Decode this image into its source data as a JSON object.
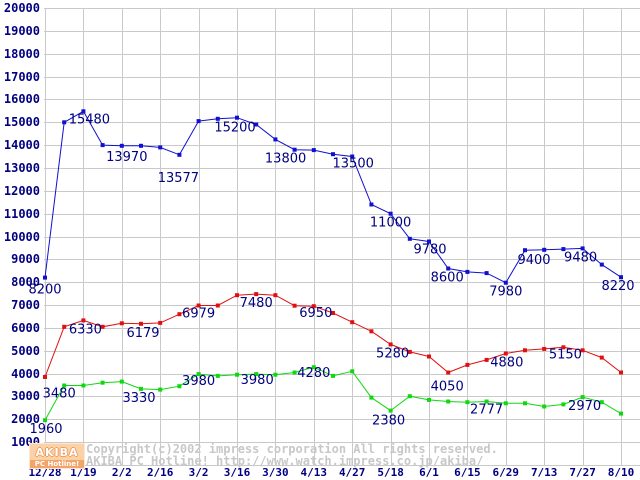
{
  "watermark": {
    "copyright_line1": "Copyright(c)2002 impress corporation All rights reserved.",
    "copyright_line2": "AKIBA PC Hotline!  http://www.watch.impress.co.jp/akiba/"
  },
  "logo": {
    "title": "AKIBA",
    "subtitle": "PC Hotline!"
  },
  "colors": {
    "grid": "#c9c9c9",
    "axis_text": "#000080",
    "point_label_text": "#000080",
    "watermark_text": "#c8c8c8",
    "logo_background": "#fbd2a8",
    "logo_strip_background": "#f3a469",
    "series_blue": "#1010d0",
    "series_red": "#e01010",
    "series_green": "#10d810"
  },
  "chart_data": {
    "type": "line",
    "title": "",
    "xlabel": "",
    "ylabel": "",
    "grid": true,
    "legend": "none",
    "ylim": [
      0,
      20000
    ],
    "y_tick_step": 1000,
    "x_tick_labels": [
      "12/28",
      "1/19",
      "2/2",
      "2/16",
      "3/2",
      "3/16",
      "3/30",
      "4/13",
      "4/27",
      "5/18",
      "6/1",
      "6/15",
      "6/29",
      "7/13",
      "7/27",
      "8/10"
    ],
    "points_per_tick_interval": 2,
    "n_points": 31,
    "series": [
      {
        "name": "blue-price-line",
        "color": "#1010d0",
        "marker_size": 4,
        "values": [
          8200,
          15000,
          15480,
          14000,
          13970,
          13970,
          13900,
          13577,
          15050,
          15150,
          15200,
          14900,
          14250,
          13800,
          13780,
          13600,
          13500,
          11400,
          11000,
          9900,
          9780,
          8600,
          8450,
          8400,
          7980,
          9400,
          9420,
          9450,
          9480,
          8770,
          8220
        ],
        "point_labels": [
          {
            "i": 0,
            "text": "8200",
            "dx": 0,
            "dy": 16
          },
          {
            "i": 2,
            "text": "15480",
            "dx": 6,
            "dy": 12
          },
          {
            "i": 4,
            "text": "13970",
            "dx": 5,
            "dy": 15
          },
          {
            "i": 7,
            "text": "13577",
            "dx": -1,
            "dy": 27
          },
          {
            "i": 10,
            "text": "15200",
            "dx": -2,
            "dy": 14
          },
          {
            "i": 13,
            "text": "13800",
            "dx": -9,
            "dy": 13
          },
          {
            "i": 16,
            "text": "13500",
            "dx": 1,
            "dy": 11
          },
          {
            "i": 18,
            "text": "11000",
            "dx": 0,
            "dy": 13
          },
          {
            "i": 20,
            "text": "9780",
            "dx": 1,
            "dy": 12
          },
          {
            "i": 21,
            "text": "8600",
            "dx": -1,
            "dy": 13
          },
          {
            "i": 24,
            "text": "7980",
            "dx": 0,
            "dy": 13
          },
          {
            "i": 25,
            "text": "9400",
            "dx": 9,
            "dy": 14
          },
          {
            "i": 28,
            "text": "9480",
            "dx": -2,
            "dy": 13
          },
          {
            "i": 30,
            "text": "8220",
            "dx": -3,
            "dy": 13
          }
        ]
      },
      {
        "name": "red-price-line",
        "color": "#e01010",
        "marker_size": 4,
        "values": [
          3850,
          6050,
          6330,
          6050,
          6200,
          6179,
          6220,
          6600,
          6979,
          6980,
          7430,
          7480,
          7430,
          6970,
          6950,
          6650,
          6250,
          5850,
          5280,
          4950,
          4750,
          4050,
          4380,
          4600,
          4880,
          5020,
          5080,
          5150,
          5020,
          4700,
          4050
        ],
        "point_labels": [
          {
            "i": 2,
            "text": "6330",
            "dx": 2,
            "dy": 13
          },
          {
            "i": 5,
            "text": "6179",
            "dx": 2,
            "dy": 13
          },
          {
            "i": 8,
            "text": "6979",
            "dx": 0,
            "dy": 12
          },
          {
            "i": 11,
            "text": "7480",
            "dx": 0,
            "dy": 13
          },
          {
            "i": 14,
            "text": "6950",
            "dx": 2,
            "dy": 11
          },
          {
            "i": 18,
            "text": "5280",
            "dx": 2,
            "dy": 13
          },
          {
            "i": 21,
            "text": "4050",
            "dx": -1,
            "dy": 18
          },
          {
            "i": 24,
            "text": "4880",
            "dx": 1,
            "dy": 13
          },
          {
            "i": 27,
            "text": "5150",
            "dx": 2,
            "dy": 11
          }
        ]
      },
      {
        "name": "green-price-line",
        "color": "#10d810",
        "marker_size": 4,
        "values": [
          1960,
          3480,
          3480,
          3600,
          3650,
          3330,
          3300,
          3450,
          3980,
          3900,
          3950,
          3980,
          3950,
          4050,
          4280,
          3900,
          4100,
          2950,
          2380,
          3010,
          2850,
          2780,
          2750,
          2777,
          2700,
          2700,
          2560,
          2650,
          2970,
          2750,
          2250
        ],
        "point_labels": [
          {
            "i": 0,
            "text": "1960",
            "dx": 1,
            "dy": 13
          },
          {
            "i": 1,
            "text": "3480",
            "dx": -5,
            "dy": 12
          },
          {
            "i": 5,
            "text": "3330",
            "dx": -2,
            "dy": 13
          },
          {
            "i": 8,
            "text": "3980",
            "dx": 0,
            "dy": 11
          },
          {
            "i": 11,
            "text": "3980",
            "dx": 1,
            "dy": 10
          },
          {
            "i": 14,
            "text": "4280",
            "dx": 0,
            "dy": 10
          },
          {
            "i": 18,
            "text": "2380",
            "dx": -2,
            "dy": 14
          },
          {
            "i": 23,
            "text": "2777",
            "dx": 0,
            "dy": 12
          },
          {
            "i": 28,
            "text": "2970",
            "dx": 2,
            "dy": 13
          }
        ]
      }
    ]
  }
}
